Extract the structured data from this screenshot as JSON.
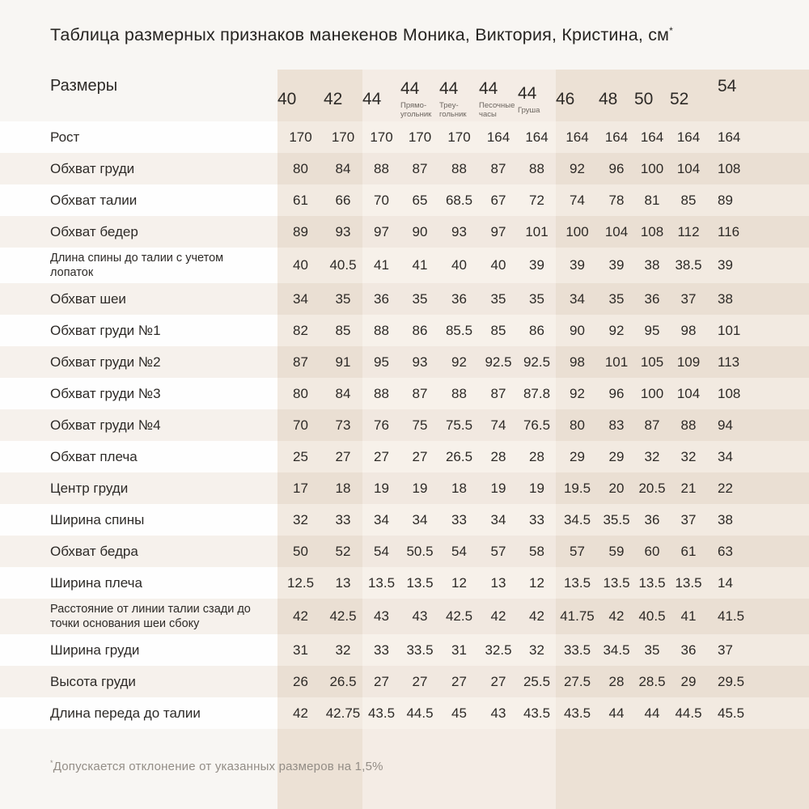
{
  "page": {
    "title": "Таблица размерных признаков манекенов Моника, Виктория, Кристина, см",
    "title_mark": "*",
    "footnote_mark": "*",
    "footnote": "Допускается отклонение от указанных размеров на 1,5%"
  },
  "chart_data": {
    "type": "table",
    "title": "Таблица размерных признаков манекенов Моника, Виктория, Кристина, см*",
    "units": "см",
    "corner_label": "Размеры",
    "columns": [
      {
        "size": "40",
        "sublabel_lines": []
      },
      {
        "size": "42",
        "sublabel_lines": []
      },
      {
        "size": "44",
        "sublabel_lines": []
      },
      {
        "size": "44",
        "sublabel_lines": [
          "Прямо-",
          "угольник"
        ]
      },
      {
        "size": "44",
        "sublabel_lines": [
          "Треу-",
          "гольник"
        ]
      },
      {
        "size": "44",
        "sublabel_lines": [
          "Песочные",
          "часы"
        ]
      },
      {
        "size": "44",
        "sublabel_lines": [
          "Груша"
        ]
      },
      {
        "size": "46",
        "sublabel_lines": []
      },
      {
        "size": "48",
        "sublabel_lines": []
      },
      {
        "size": "50",
        "sublabel_lines": []
      },
      {
        "size": "52",
        "sublabel_lines": []
      },
      {
        "size": "54",
        "sublabel_lines": []
      }
    ],
    "rows": [
      {
        "label": "Рост",
        "tall": false,
        "values": [
          "170",
          "170",
          "170",
          "170",
          "170",
          "164",
          "164",
          "164",
          "164",
          "164",
          "164",
          "164"
        ]
      },
      {
        "label": "Обхват груди",
        "tall": false,
        "values": [
          "80",
          "84",
          "88",
          "87",
          "88",
          "87",
          "88",
          "92",
          "96",
          "100",
          "104",
          "108"
        ]
      },
      {
        "label": "Обхват талии",
        "tall": false,
        "values": [
          "61",
          "66",
          "70",
          "65",
          "68.5",
          "67",
          "72",
          "74",
          "78",
          "81",
          "85",
          "89"
        ]
      },
      {
        "label": "Обхват бедер",
        "tall": false,
        "values": [
          "89",
          "93",
          "97",
          "90",
          "93",
          "97",
          "101",
          "100",
          "104",
          "108",
          "112",
          "116"
        ]
      },
      {
        "label": "Длина спины до талии с учетом лопаток",
        "tall": true,
        "values": [
          "40",
          "40.5",
          "41",
          "41",
          "40",
          "40",
          "39",
          "39",
          "39",
          "38",
          "38.5",
          "39"
        ]
      },
      {
        "label": "Обхват шеи",
        "tall": false,
        "values": [
          "34",
          "35",
          "36",
          "35",
          "36",
          "35",
          "35",
          "34",
          "35",
          "36",
          "37",
          "38"
        ]
      },
      {
        "label": "Обхват груди №1",
        "tall": false,
        "values": [
          "82",
          "85",
          "88",
          "86",
          "85.5",
          "85",
          "86",
          "90",
          "92",
          "95",
          "98",
          "101"
        ]
      },
      {
        "label": "Обхват груди №2",
        "tall": false,
        "values": [
          "87",
          "91",
          "95",
          "93",
          "92",
          "92.5",
          "92.5",
          "98",
          "101",
          "105",
          "109",
          "113"
        ]
      },
      {
        "label": "Обхват груди №3",
        "tall": false,
        "values": [
          "80",
          "84",
          "88",
          "87",
          "88",
          "87",
          "87.8",
          "92",
          "96",
          "100",
          "104",
          "108"
        ]
      },
      {
        "label": "Обхват груди №4",
        "tall": false,
        "values": [
          "70",
          "73",
          "76",
          "75",
          "75.5",
          "74",
          "76.5",
          "80",
          "83",
          "87",
          "88",
          "94"
        ]
      },
      {
        "label": "Обхват плеча",
        "tall": false,
        "values": [
          "25",
          "27",
          "27",
          "27",
          "26.5",
          "28",
          "28",
          "29",
          "29",
          "32",
          "32",
          "34"
        ]
      },
      {
        "label": "Центр груди",
        "tall": false,
        "values": [
          "17",
          "18",
          "19",
          "19",
          "18",
          "19",
          "19",
          "19.5",
          "20",
          "20.5",
          "21",
          "22"
        ]
      },
      {
        "label": "Ширина спины",
        "tall": false,
        "values": [
          "32",
          "33",
          "34",
          "34",
          "33",
          "34",
          "33",
          "34.5",
          "35.5",
          "36",
          "37",
          "38"
        ]
      },
      {
        "label": "Обхват бедра",
        "tall": false,
        "values": [
          "50",
          "52",
          "54",
          "50.5",
          "54",
          "57",
          "58",
          "57",
          "59",
          "60",
          "61",
          "63"
        ]
      },
      {
        "label": "Ширина плеча",
        "tall": false,
        "values": [
          "12.5",
          "13",
          "13.5",
          "13.5",
          "12",
          "13",
          "12",
          "13.5",
          "13.5",
          "13.5",
          "13.5",
          "14"
        ]
      },
      {
        "label": "Расстояние от линии талии сзади до точки основания шеи сбоку",
        "tall": true,
        "values": [
          "42",
          "42.5",
          "43",
          "43",
          "42.5",
          "42",
          "42",
          "41.75",
          "42",
          "40.5",
          "41",
          "41.5"
        ]
      },
      {
        "label": "Ширина груди",
        "tall": false,
        "values": [
          "31",
          "32",
          "33",
          "33.5",
          "31",
          "32.5",
          "32",
          "33.5",
          "34.5",
          "35",
          "36",
          "37"
        ]
      },
      {
        "label": "Высота груди",
        "tall": false,
        "values": [
          "26",
          "26.5",
          "27",
          "27",
          "27",
          "27",
          "25.5",
          "27.5",
          "28",
          "28.5",
          "29",
          "29.5"
        ]
      },
      {
        "label": "Длина переда до талии",
        "tall": false,
        "values": [
          "42",
          "42.75",
          "43.5",
          "44.5",
          "45",
          "43",
          "43.5",
          "43.5",
          "44",
          "44",
          "44.5",
          "45.5"
        ]
      }
    ],
    "footnote": "*Допускается отклонение от указанных размеров на 1,5%",
    "layout_hints": {
      "band_groups": [
        [
          "40",
          "42"
        ],
        [
          "44",
          "44",
          "44",
          "44",
          "44"
        ],
        [
          "46",
          "48",
          "50",
          "52",
          "54"
        ]
      ],
      "grid": false
    }
  },
  "colors": {
    "page_bg": "#f8f6f3",
    "band_dark": "#ece1d5",
    "band_light": "#f4ece5",
    "rowl_label": "#fefefe",
    "rowl_bd": "#f2eae1",
    "rowl_bl": "#f7f1ea",
    "rowd_label": "#f6f1ec",
    "rowd_bd": "#eadfd3",
    "rowd_bl": "#f1e8e0",
    "text": "#2d2a27",
    "sub_text": "#6b655f",
    "footnote_text": "#938d86"
  }
}
